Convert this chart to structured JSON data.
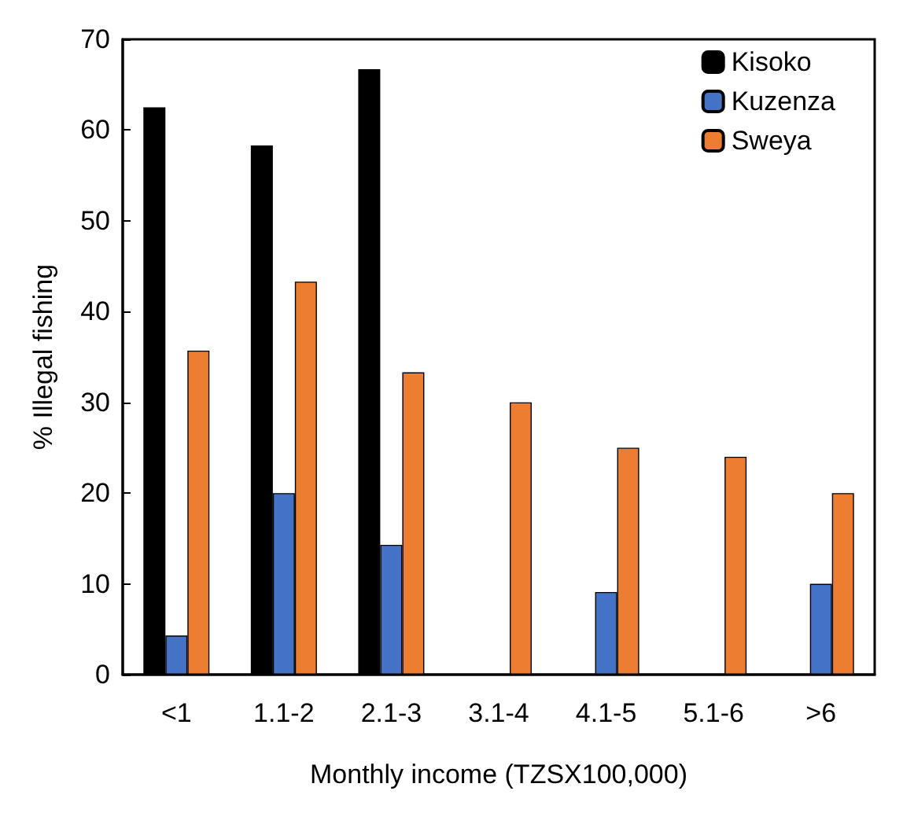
{
  "chart_data": {
    "type": "bar",
    "xlabel": "Monthly income (TZSX100,000)",
    "ylabel": "% Illegal fishing",
    "categories": [
      "<1",
      "1.1-2",
      "2.1-3",
      "3.1-4",
      "4.1-5",
      "5.1-6",
      ">6"
    ],
    "series": [
      {
        "name": "Kisoko",
        "color": "#000000",
        "values": [
          62.5,
          58.3,
          66.7,
          null,
          null,
          null,
          null
        ]
      },
      {
        "name": "Kuzenza",
        "color": "#4472c4",
        "values": [
          4.3,
          20,
          14.3,
          null,
          9.1,
          null,
          10
        ]
      },
      {
        "name": "Sweya",
        "color": "#ed7d31",
        "values": [
          35.7,
          43.3,
          33.3,
          30,
          25,
          24,
          20
        ]
      }
    ],
    "ylim": [
      0,
      70
    ],
    "yticks": [
      0,
      10,
      20,
      30,
      40,
      50,
      60,
      70
    ],
    "grid": false,
    "legend": "top right"
  }
}
